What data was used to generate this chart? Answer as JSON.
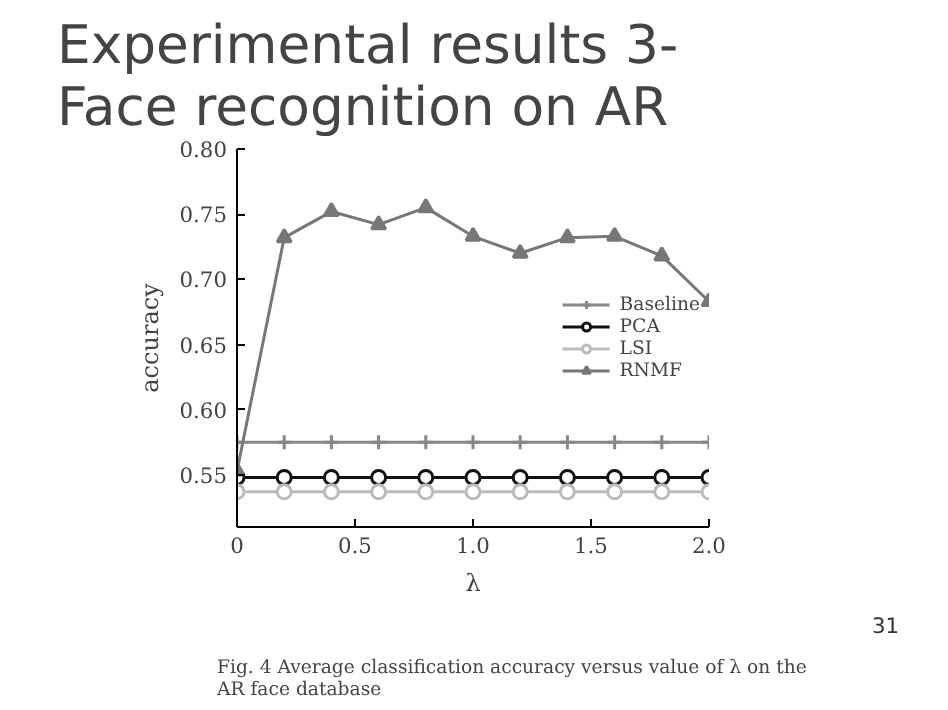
{
  "chart_data": {
    "type": "line",
    "title": "Experimental results 3-\nFace recognition on AR",
    "xlabel": "λ",
    "ylabel": "accuracy",
    "x": [
      0,
      0.2,
      0.4,
      0.6,
      0.8,
      1.0,
      1.2,
      1.4,
      1.6,
      1.8,
      2.0
    ],
    "series": [
      {
        "name": "Baseline",
        "color": "#888888",
        "marker": "cross",
        "values": [
          0.575,
          0.575,
          0.575,
          0.575,
          0.575,
          0.575,
          0.575,
          0.575,
          0.575,
          0.575,
          0.575
        ]
      },
      {
        "name": "PCA",
        "color": "#111111",
        "marker": "circle",
        "values": [
          0.548,
          0.548,
          0.548,
          0.548,
          0.548,
          0.548,
          0.548,
          0.548,
          0.548,
          0.548,
          0.548
        ]
      },
      {
        "name": "LSI",
        "color": "#bbbbbb",
        "marker": "circle",
        "values": [
          0.537,
          0.537,
          0.537,
          0.537,
          0.537,
          0.537,
          0.537,
          0.537,
          0.537,
          0.537,
          0.537
        ]
      },
      {
        "name": "RNMF",
        "color": "#777777",
        "marker": "triangle",
        "values": [
          0.553,
          0.732,
          0.752,
          0.742,
          0.755,
          0.733,
          0.72,
          0.732,
          0.733,
          0.718,
          0.683
        ]
      }
    ],
    "xlim": [
      0,
      2.0
    ],
    "xticks": [
      0,
      0.5,
      {
        "value": 1.0,
        "label": "1.0"
      },
      1.5,
      {
        "value": 2.0,
        "label": "2.0"
      }
    ],
    "ylim": [
      0.51,
      0.8
    ],
    "yticks": [
      0.55,
      {
        "value": 0.6,
        "label": "0.60"
      },
      0.65,
      {
        "value": 0.7,
        "label": "0.70"
      },
      0.75,
      {
        "value": 0.8,
        "label": "0.80"
      }
    ],
    "legend": "center right",
    "grid": false,
    "annotations": [
      "Fig. 4  Average classification accuracy versus value of λ on the\nAR face database",
      "31"
    ]
  }
}
